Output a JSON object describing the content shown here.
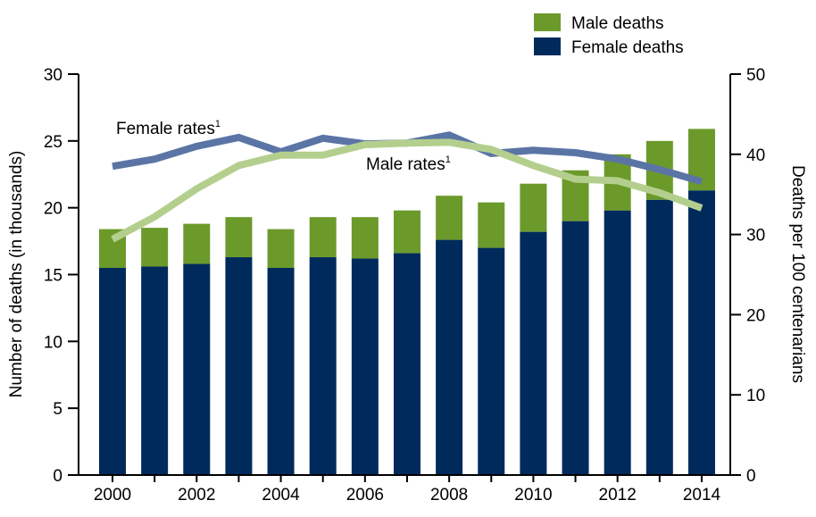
{
  "chart_data": {
    "type": "bar+line",
    "categories": [
      "2000",
      "2001",
      "2002",
      "2003",
      "2004",
      "2005",
      "2006",
      "2007",
      "2008",
      "2009",
      "2010",
      "2011",
      "2012",
      "2013",
      "2014"
    ],
    "x_tick_labels": [
      "2000",
      "2002",
      "2004",
      "2006",
      "2008",
      "2010",
      "2012",
      "2014"
    ],
    "bar_series": [
      {
        "name": "Female deaths",
        "color": "#002a5c",
        "axis": "left",
        "values": [
          15.5,
          15.6,
          15.8,
          16.3,
          15.5,
          16.3,
          16.2,
          16.6,
          17.6,
          17.0,
          18.2,
          19.0,
          19.8,
          20.6,
          21.3
        ]
      },
      {
        "name": "Male deaths",
        "color": "#6b9a2b",
        "axis": "left",
        "values": [
          2.9,
          2.9,
          3.0,
          3.0,
          2.9,
          3.0,
          3.1,
          3.2,
          3.3,
          3.4,
          3.6,
          3.8,
          4.2,
          4.4,
          4.6
        ]
      }
    ],
    "line_series": [
      {
        "name": "Female rates",
        "footnote": "1",
        "color": "#5a75a5",
        "axis": "right",
        "values": [
          38.5,
          39.4,
          41.0,
          42.1,
          40.3,
          42.0,
          41.3,
          41.4,
          42.4,
          40.1,
          40.5,
          40.2,
          39.4,
          38.1,
          36.6
        ]
      },
      {
        "name": "Male rates",
        "footnote": "1",
        "color": "#b4cf8d",
        "axis": "right",
        "values": [
          29.4,
          32.2,
          35.7,
          38.6,
          39.9,
          39.9,
          41.2,
          41.4,
          41.5,
          40.6,
          38.6,
          36.9,
          36.7,
          35.2,
          33.3
        ]
      }
    ],
    "ylabel": "Number of deaths (in thousands)",
    "ylim": [
      0,
      30
    ],
    "yticks": [
      "0",
      "5",
      "10",
      "15",
      "20",
      "25",
      "30"
    ],
    "y2label": "Deaths per 100 centenarians",
    "y2lim": [
      0,
      50
    ],
    "y2ticks": [
      "0",
      "10",
      "20",
      "30",
      "40",
      "50"
    ],
    "stacked": true,
    "grid": false,
    "legend": "top-right"
  }
}
